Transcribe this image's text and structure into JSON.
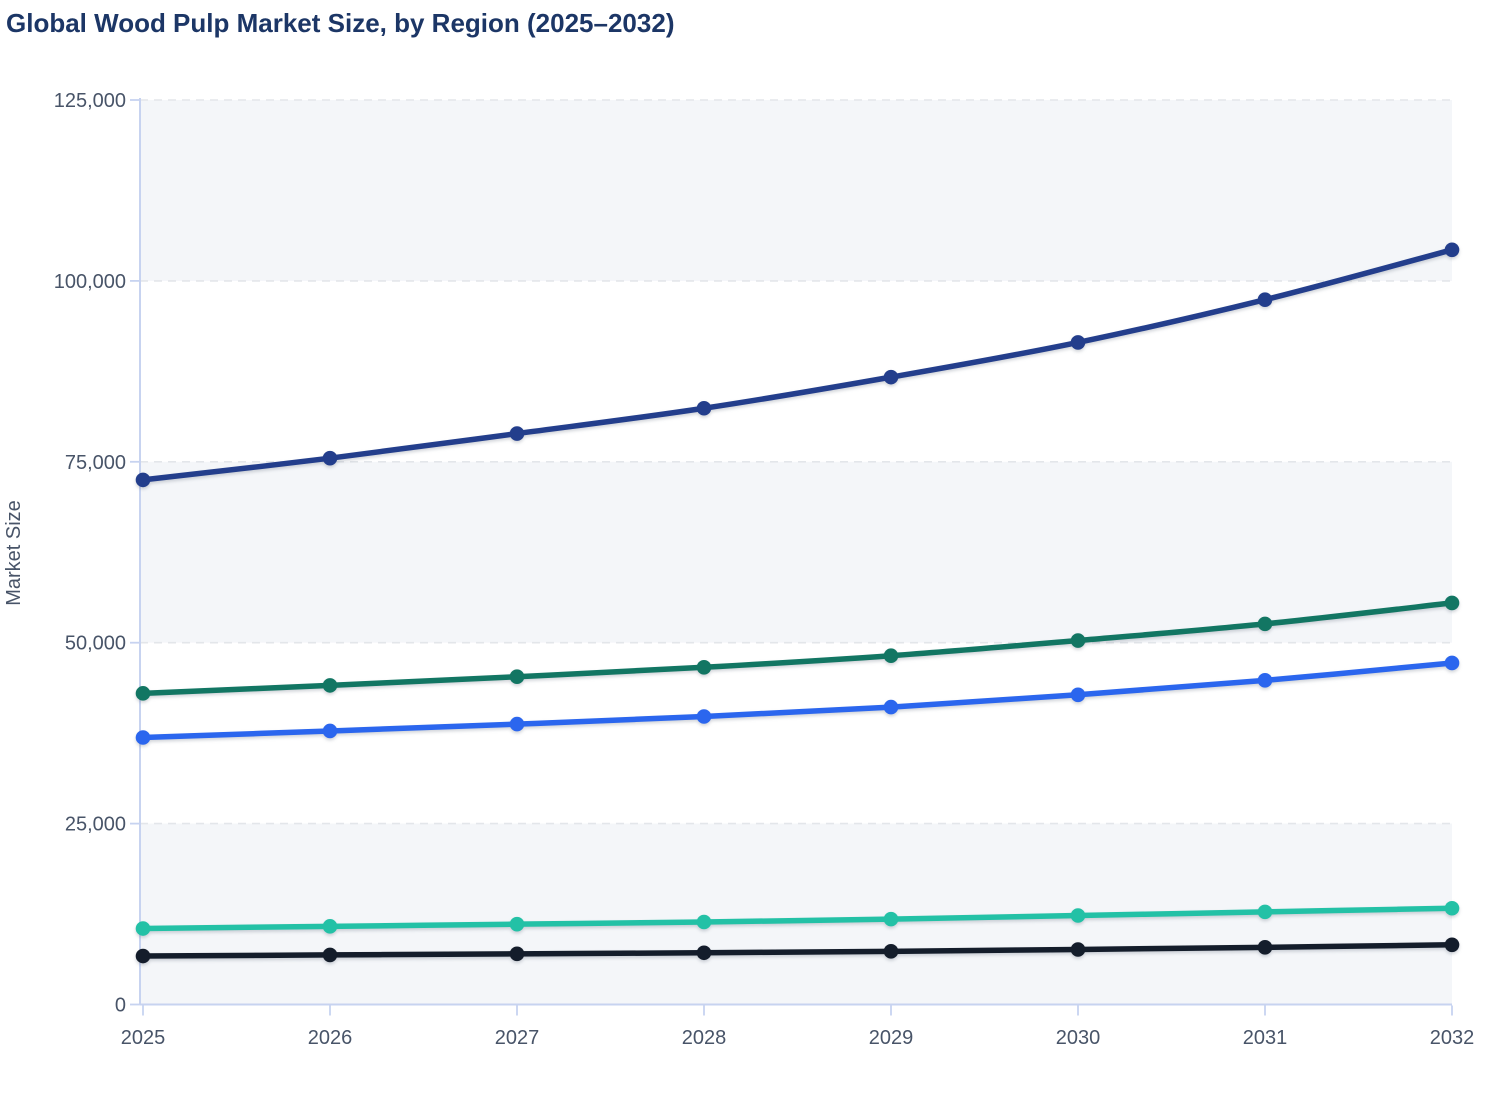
{
  "title": "Global Wood Pulp Market Size, by Region (2025–2032)",
  "chart_data": {
    "type": "line",
    "title": "Global Wood Pulp Market Size, by Region (2025–2032)",
    "xlabel": "",
    "ylabel": "Market Size",
    "x": [
      2025,
      2026,
      2027,
      2028,
      2029,
      2030,
      2031,
      2032
    ],
    "x_tick_labels": [
      "2025",
      "2026",
      "2027",
      "2028",
      "2029",
      "2030",
      "2031",
      "2032"
    ],
    "ylim": [
      0,
      125000
    ],
    "yticks": [
      0,
      25000,
      50000,
      75000,
      100000,
      125000
    ],
    "y_tick_labels": [
      "0",
      "25,000",
      "50,000",
      "75,000",
      "100,000",
      "125,000"
    ],
    "grid": "horizontal-dashed",
    "legend": "none-visible",
    "marker": "circle",
    "line_shape": "spline",
    "series": [
      {
        "name": "navy-line",
        "color": "#233e8c",
        "values": [
          72500,
          75500,
          78900,
          82400,
          86700,
          91500,
          97400,
          104300
        ]
      },
      {
        "name": "dark-green-line",
        "color": "#127663",
        "values": [
          43000,
          44100,
          45300,
          46600,
          48200,
          50300,
          52600,
          55500
        ]
      },
      {
        "name": "bright-blue-line",
        "color": "#2b66ee",
        "values": [
          36900,
          37800,
          38750,
          39800,
          41100,
          42800,
          44800,
          47200
        ]
      },
      {
        "name": "teal-line",
        "color": "#23c1a6",
        "values": [
          10500,
          10800,
          11100,
          11400,
          11800,
          12300,
          12800,
          13300
        ]
      },
      {
        "name": "black-line",
        "color": "#141d2b",
        "values": [
          6700,
          6850,
          7000,
          7150,
          7350,
          7600,
          7900,
          8250
        ]
      }
    ],
    "band_fill_ranges": [
      [
        0,
        25000
      ],
      [
        50000,
        75000
      ],
      [
        100000,
        125000
      ]
    ],
    "band_color": "#f4f6f9"
  },
  "style": {
    "title_color": "#1c3666",
    "tick_label_color": "#485468",
    "axis_line_color": "#c7d3f0",
    "gridline_color": "#e3e6ea",
    "background": "#ffffff"
  }
}
